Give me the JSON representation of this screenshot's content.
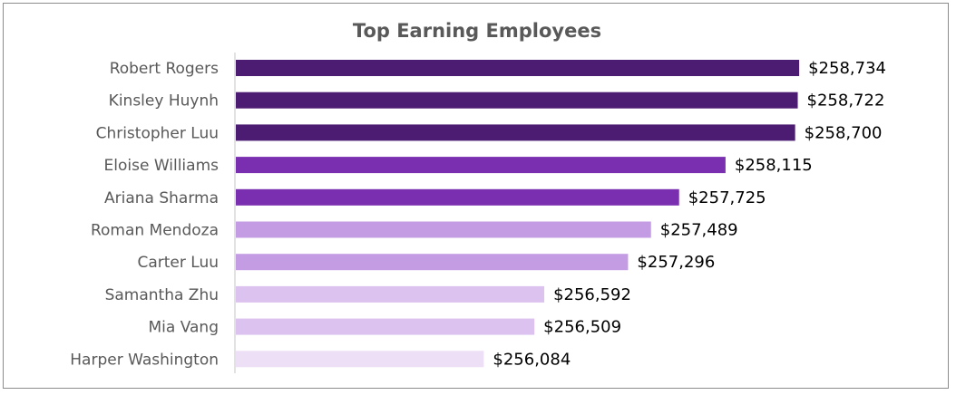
{
  "chart_data": {
    "type": "bar",
    "orientation": "horizontal",
    "title": "Top Earning Employees",
    "xlabel": "",
    "ylabel": "",
    "grid": false,
    "legend": "none",
    "value_prefix": "$",
    "xlim": [
      254000,
      259000
    ],
    "categories": [
      "Robert Rogers",
      "Kinsley Huynh",
      "Christopher Luu",
      "Eloise Williams",
      "Ariana Sharma",
      "Roman Mendoza",
      "Carter Luu",
      "Samantha Zhu",
      "Mia Vang",
      "Harper Washington"
    ],
    "values": [
      258734,
      258722,
      258700,
      258115,
      257725,
      257489,
      257296,
      256592,
      256509,
      256084
    ],
    "data_labels": [
      "$258,734",
      "$258,722",
      "$258,700",
      "$258,115",
      "$257,725",
      "$257,489",
      "$257,296",
      "$256,592",
      "$256,509",
      "$256,084"
    ],
    "bar_colors": [
      "#4b1c72",
      "#4b1c72",
      "#4b1c72",
      "#7a2eb0",
      "#7a2eb0",
      "#c49ce3",
      "#c49ce3",
      "#dcc3ef",
      "#dcc3ef",
      "#ecdff6"
    ],
    "axis_color": "#d9d9d9"
  }
}
